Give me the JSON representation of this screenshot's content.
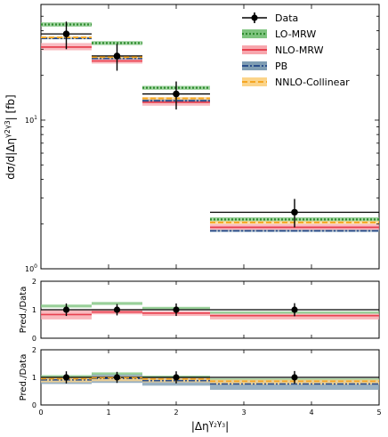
{
  "colors": {
    "data": "#000000",
    "lo_mrw": "#2e8b2e",
    "lo_mrw_band": "#7fc47f",
    "nlo_mrw": "#e8404f",
    "nlo_mrw_band": "#f7a6ad",
    "pb": "#2b4f8c",
    "pb_band": "#7f9db3",
    "nnlo_collinear": "#f5a623",
    "nnlo_collinear_band": "#fbd48a"
  },
  "chart_data": {
    "type": "step",
    "xlabel": "|Δη^{γ2γ3}|",
    "xlabel_parts": {
      "main": "|Δη",
      "sup_gamma1": "γ",
      "sub1": "2",
      "sup_gamma2": "γ",
      "sub2": "3",
      "close": "|"
    },
    "ylabel": "dσ/d|Δη^{γ2γ3}| [fb]",
    "ylabel_parts": {
      "main": "dσ/d|Δη",
      "sup": "γ2γ3",
      "close": "| [fb]"
    },
    "ratio_ylabel": "Pred./Data",
    "xlim": [
      0,
      5
    ],
    "x_ticks": [
      "0",
      "1",
      "2",
      "3",
      "4",
      "5"
    ],
    "bins": [
      [
        0,
        0.75
      ],
      [
        0.75,
        1.5
      ],
      [
        1.5,
        2.5
      ],
      [
        2.5,
        5
      ]
    ],
    "main": {
      "yscale": "log",
      "ylim": [
        1,
        60
      ],
      "y_ticks": [
        {
          "value": 1,
          "base": "10",
          "exp": "0"
        },
        {
          "value": 10,
          "base": "10",
          "exp": "1"
        }
      ],
      "data": {
        "name": "Data",
        "x": [
          0.375,
          1.125,
          2.0,
          3.75
        ],
        "y": [
          38,
          27,
          15,
          2.4
        ],
        "yerr_low": [
          8,
          5.5,
          3.2,
          0.5
        ],
        "yerr_high": [
          8,
          5.5,
          3.2,
          0.55
        ]
      },
      "series": [
        {
          "name": "LO-MRW",
          "values": [
            44,
            33,
            16.5,
            2.15
          ],
          "band_low": [
            42.5,
            32,
            16.0,
            2.08
          ],
          "band_high": [
            45.5,
            34,
            17.0,
            2.22
          ],
          "style": "dotted"
        },
        {
          "name": "NLO-MRW",
          "values": [
            31,
            25,
            13.2,
            1.9
          ],
          "band_low": [
            29.5,
            24,
            12.5,
            1.8
          ],
          "band_high": [
            33,
            26.5,
            14.0,
            2.0
          ],
          "style": "solid"
        },
        {
          "name": "PB",
          "values": [
            35.5,
            26,
            13.5,
            1.8
          ],
          "band_low": [
            35,
            25.6,
            13.2,
            1.77
          ],
          "band_high": [
            36,
            26.4,
            13.8,
            1.83
          ],
          "style": "dashdot"
        },
        {
          "name": "NNLO-Collinear",
          "values": [
            36,
            26.5,
            14,
            2.05
          ],
          "band_low": [
            35.4,
            26,
            13.7,
            2.0
          ],
          "band_high": [
            36.6,
            27,
            14.3,
            2.1
          ],
          "style": "dashed"
        }
      ]
    },
    "ratio_top": {
      "ylim": [
        0,
        2
      ],
      "y_ticks": [
        "0",
        "1",
        "2"
      ],
      "data_err": [
        0.22,
        0.2,
        0.22,
        0.23
      ],
      "series": [
        {
          "name": "LO-MRW",
          "band_low": [
            1.08,
            1.17,
            1.02,
            0.86
          ],
          "band_high": [
            1.18,
            1.27,
            1.1,
            0.94
          ],
          "style": "band"
        },
        {
          "name": "NLO-MRW",
          "values": [
            0.83,
            0.92,
            0.88,
            0.79
          ],
          "band_low": [
            0.66,
            0.84,
            0.78,
            0.66
          ],
          "band_high": [
            0.98,
            1.02,
            0.95,
            0.86
          ],
          "style": "solid"
        }
      ]
    },
    "ratio_bottom": {
      "ylim": [
        0,
        2
      ],
      "y_ticks": [
        "0",
        "1",
        "2"
      ],
      "data_err": [
        0.22,
        0.2,
        0.22,
        0.23
      ],
      "series": [
        {
          "name": "LO-MRW",
          "band_low": [
            0.98,
            1.08,
            0.98,
            0.88
          ],
          "band_high": [
            1.08,
            1.18,
            1.06,
            0.96
          ],
          "style": "band"
        },
        {
          "name": "PB",
          "values": [
            0.91,
            0.96,
            0.88,
            0.76
          ],
          "band_low": [
            0.76,
            0.8,
            0.7,
            0.55
          ],
          "band_high": [
            1.0,
            1.1,
            1.02,
            0.92
          ],
          "style": "dashdot"
        },
        {
          "name": "NNLO-Collinear",
          "values": [
            0.95,
            0.98,
            0.94,
            0.86
          ],
          "band_low": [
            0.82,
            0.86,
            0.82,
            0.74
          ],
          "band_high": [
            1.02,
            1.04,
            0.98,
            0.92
          ],
          "style": "dashed"
        }
      ]
    },
    "legend": {
      "placement": "top-right",
      "entries": [
        "Data",
        "LO-MRW",
        "NLO-MRW",
        "PB",
        "NNLO-Collinear"
      ]
    }
  }
}
